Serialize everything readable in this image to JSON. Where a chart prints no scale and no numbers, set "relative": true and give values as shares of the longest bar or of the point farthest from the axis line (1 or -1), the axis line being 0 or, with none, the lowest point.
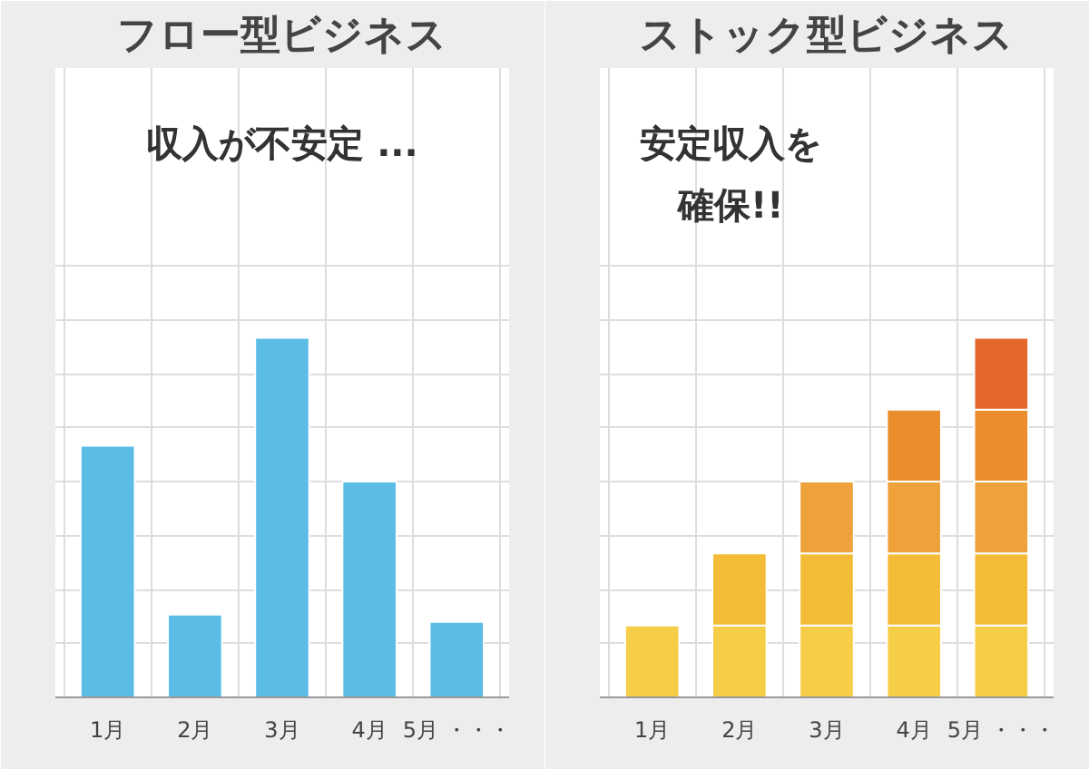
{
  "chart_data": [
    {
      "type": "bar",
      "title": "フロー型ビジネス",
      "annotations": [
        "収入が不安定 ..."
      ],
      "categories": [
        "1月",
        "2月",
        "3月",
        "4月",
        "5月 ・・・"
      ],
      "relative": true,
      "grid": true,
      "color": "#5bbde6",
      "values": [
        0.7,
        0.23,
        1,
        0.6,
        0.21
      ]
    },
    {
      "type": "bar",
      "title": "ストック型ビジネス",
      "annotations": [
        "安定収入を",
        "確保!!"
      ],
      "categories": [
        "1月",
        "2月",
        "3月",
        "4月",
        "5月 ・・・"
      ],
      "relative": true,
      "grid": true,
      "stacked": true,
      "series": [
        {
          "color": "#f6cd47",
          "values": [
            0.2,
            0.2,
            0.2,
            0.2,
            0.2
          ]
        },
        {
          "color": "#f3bb36",
          "values": [
            null,
            0.2,
            0.2,
            0.2,
            0.2
          ]
        },
        {
          "color": "#efa23c",
          "values": [
            null,
            null,
            0.2,
            0.2,
            0.2
          ]
        },
        {
          "color": "#ec8d2d",
          "values": [
            null,
            null,
            null,
            0.2,
            0.2
          ]
        },
        {
          "color": "#e4682b",
          "values": [
            null,
            null,
            null,
            null,
            0.2
          ]
        }
      ]
    }
  ]
}
